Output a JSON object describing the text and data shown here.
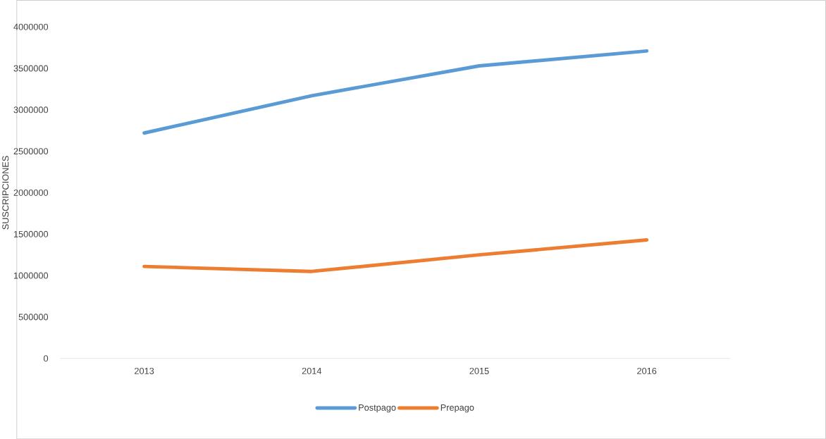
{
  "chart_data": {
    "type": "line",
    "ylabel": "SUSCRIPCIONES",
    "categories": [
      "2013",
      "2014",
      "2015",
      "2016"
    ],
    "series": [
      {
        "name": "Postpago",
        "color": "#5b9bd5",
        "values": [
          2720000,
          3170000,
          3530000,
          3710000
        ]
      },
      {
        "name": "Prepago",
        "color": "#ed7d31",
        "values": [
          1110000,
          1050000,
          1250000,
          1430000
        ]
      }
    ],
    "ylim": [
      0,
      4000000
    ],
    "yticks": [
      0,
      500000,
      1000000,
      1500000,
      2000000,
      2500000,
      3000000,
      3500000,
      4000000
    ],
    "grid": false,
    "legend": "bottom",
    "marker": "none"
  }
}
